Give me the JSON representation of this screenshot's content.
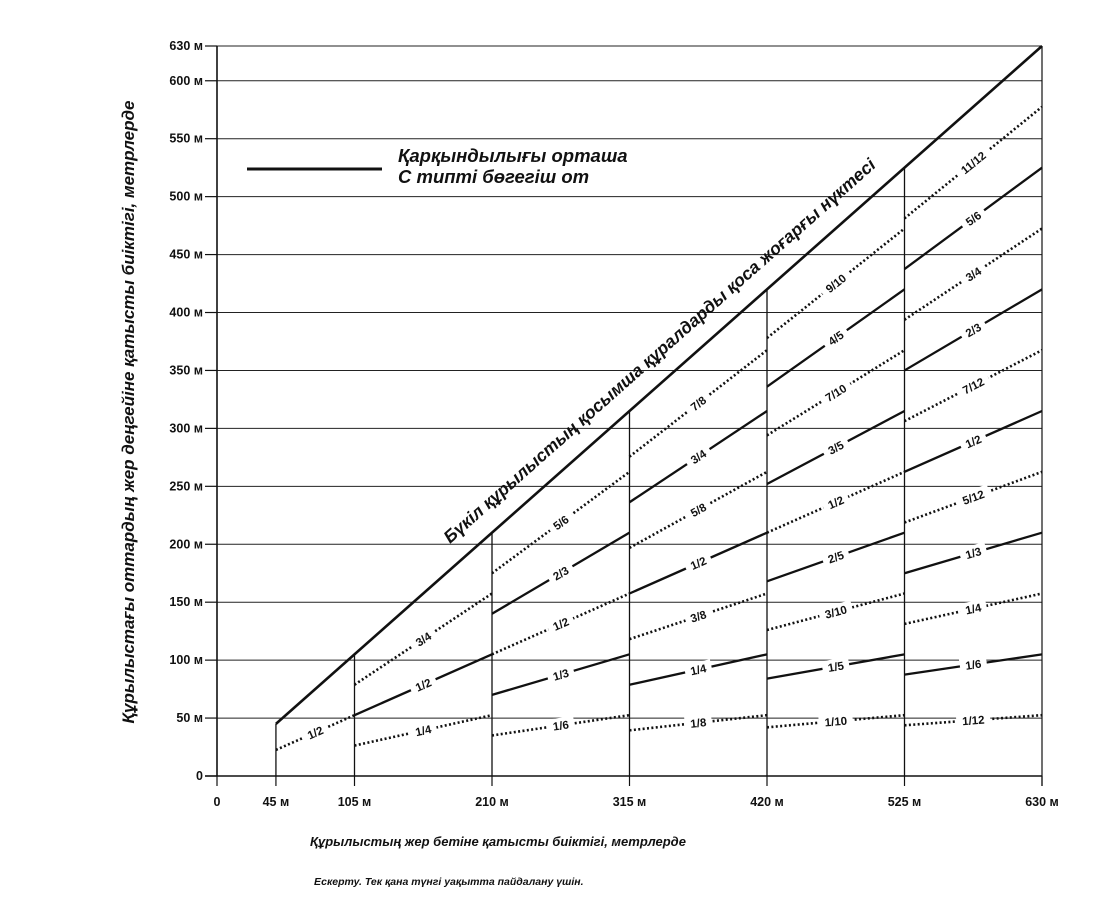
{
  "chart_data": {
    "type": "line",
    "xlabel": "Құрылыстың жер бетіне қатысты биіктігі, метрлерде",
    "ylabel": "Құрылыстағы оттардың жер деңгейіне қатысты биіктігі, метрлерде",
    "note": "Ескерту. Тек қана түнгі уақытта пайдалану үшін.",
    "legend": {
      "line1": "Қарқындылығы орташа",
      "line2": "С типті бөгегіш от",
      "style": "solid"
    },
    "diagonal_label": "Бүкіл құрылыстың қосымша құралдарды қоса жоғарғы нүктесі",
    "xlim": [
      0,
      630
    ],
    "ylim": [
      0,
      630
    ],
    "x_ticks": [
      {
        "value": 0,
        "label": "0"
      },
      {
        "value": 45,
        "label": "45 м"
      },
      {
        "value": 105,
        "label": "105 м"
      },
      {
        "value": 210,
        "label": "210 м"
      },
      {
        "value": 315,
        "label": "315 м"
      },
      {
        "value": 420,
        "label": "420 м"
      },
      {
        "value": 525,
        "label": "525 м"
      },
      {
        "value": 630,
        "label": "630 м"
      }
    ],
    "y_ticks": [
      {
        "value": 0,
        "label": "0"
      },
      {
        "value": 50,
        "label": "50 м"
      },
      {
        "value": 100,
        "label": "100 м"
      },
      {
        "value": 150,
        "label": "150 м"
      },
      {
        "value": 200,
        "label": "200 м"
      },
      {
        "value": 250,
        "label": "250 м"
      },
      {
        "value": 300,
        "label": "300 м"
      },
      {
        "value": 350,
        "label": "350 м"
      },
      {
        "value": 400,
        "label": "400 м"
      },
      {
        "value": 450,
        "label": "450 м"
      },
      {
        "value": 500,
        "label": "500 м"
      },
      {
        "value": 550,
        "label": "550 м"
      },
      {
        "value": 600,
        "label": "600 м"
      },
      {
        "value": 630,
        "label": "630 м"
      }
    ],
    "section_boundaries": [
      45,
      105,
      210,
      315,
      420,
      525
    ],
    "diagonal": {
      "x": [
        45,
        630
      ],
      "y": [
        45,
        630
      ],
      "style": "solid"
    },
    "series": [
      {
        "label": "1/2",
        "style": "dotted",
        "x": [
          45,
          105
        ],
        "y": [
          22.5,
          52.5
        ]
      },
      {
        "label": "1/4",
        "style": "dotted",
        "x": [
          105,
          210
        ],
        "y": [
          26.25,
          52.5
        ]
      },
      {
        "label": "1/2",
        "style": "solid",
        "x": [
          105,
          210
        ],
        "y": [
          52.5,
          105
        ]
      },
      {
        "label": "3/4",
        "style": "dotted",
        "x": [
          105,
          210
        ],
        "y": [
          78.75,
          157.5
        ]
      },
      {
        "label": "1/6",
        "style": "dotted",
        "x": [
          210,
          315
        ],
        "y": [
          35,
          52.5
        ]
      },
      {
        "label": "1/3",
        "style": "solid",
        "x": [
          210,
          315
        ],
        "y": [
          70,
          105
        ]
      },
      {
        "label": "1/2",
        "style": "dotted",
        "x": [
          210,
          315
        ],
        "y": [
          105,
          157.5
        ]
      },
      {
        "label": "2/3",
        "style": "solid",
        "x": [
          210,
          315
        ],
        "y": [
          140,
          210
        ]
      },
      {
        "label": "5/6",
        "style": "dotted",
        "x": [
          210,
          315
        ],
        "y": [
          175,
          262.5
        ]
      },
      {
        "label": "1/8",
        "style": "dotted",
        "x": [
          315,
          420
        ],
        "y": [
          39.4,
          52.5
        ]
      },
      {
        "label": "1/4",
        "style": "solid",
        "x": [
          315,
          420
        ],
        "y": [
          78.75,
          105
        ]
      },
      {
        "label": "3/8",
        "style": "dotted",
        "x": [
          315,
          420
        ],
        "y": [
          118.1,
          157.5
        ]
      },
      {
        "label": "1/2",
        "style": "solid",
        "x": [
          315,
          420
        ],
        "y": [
          157.5,
          210
        ]
      },
      {
        "label": "5/8",
        "style": "dotted",
        "x": [
          315,
          420
        ],
        "y": [
          196.9,
          262.5
        ]
      },
      {
        "label": "3/4",
        "style": "solid",
        "x": [
          315,
          420
        ],
        "y": [
          236.25,
          315
        ]
      },
      {
        "label": "7/8",
        "style": "dotted",
        "x": [
          315,
          420
        ],
        "y": [
          275.6,
          367.5
        ]
      },
      {
        "label": "1/10",
        "style": "dotted",
        "x": [
          420,
          525
        ],
        "y": [
          42,
          52.5
        ]
      },
      {
        "label": "1/5",
        "style": "solid",
        "x": [
          420,
          525
        ],
        "y": [
          84,
          105
        ]
      },
      {
        "label": "3/10",
        "style": "dotted",
        "x": [
          420,
          525
        ],
        "y": [
          126,
          157.5
        ]
      },
      {
        "label": "2/5",
        "style": "solid",
        "x": [
          420,
          525
        ],
        "y": [
          168,
          210
        ]
      },
      {
        "label": "1/2",
        "style": "dotted",
        "x": [
          420,
          525
        ],
        "y": [
          210,
          262.5
        ]
      },
      {
        "label": "3/5",
        "style": "solid",
        "x": [
          420,
          525
        ],
        "y": [
          252,
          315
        ]
      },
      {
        "label": "7/10",
        "style": "dotted",
        "x": [
          420,
          525
        ],
        "y": [
          294,
          367.5
        ]
      },
      {
        "label": "4/5",
        "style": "solid",
        "x": [
          420,
          525
        ],
        "y": [
          336,
          420
        ]
      },
      {
        "label": "9/10",
        "style": "dotted",
        "x": [
          420,
          525
        ],
        "y": [
          378,
          472.5
        ]
      },
      {
        "label": "1/12",
        "style": "dotted",
        "x": [
          525,
          630
        ],
        "y": [
          43.75,
          52.5
        ]
      },
      {
        "label": "1/6",
        "style": "solid",
        "x": [
          525,
          630
        ],
        "y": [
          87.5,
          105
        ]
      },
      {
        "label": "1/4",
        "style": "dotted",
        "x": [
          525,
          630
        ],
        "y": [
          131.25,
          157.5
        ]
      },
      {
        "label": "1/3",
        "style": "solid",
        "x": [
          525,
          630
        ],
        "y": [
          175,
          210
        ]
      },
      {
        "label": "5/12",
        "style": "dotted",
        "x": [
          525,
          630
        ],
        "y": [
          218.75,
          262.5
        ]
      },
      {
        "label": "1/2",
        "style": "solid",
        "x": [
          525,
          630
        ],
        "y": [
          262.5,
          315
        ]
      },
      {
        "label": "7/12",
        "style": "dotted",
        "x": [
          525,
          630
        ],
        "y": [
          306.25,
          367.5
        ]
      },
      {
        "label": "2/3",
        "style": "solid",
        "x": [
          525,
          630
        ],
        "y": [
          350,
          420
        ]
      },
      {
        "label": "3/4",
        "style": "dotted",
        "x": [
          525,
          630
        ],
        "y": [
          393.75,
          472.5
        ]
      },
      {
        "label": "5/6",
        "style": "solid",
        "x": [
          525,
          630
        ],
        "y": [
          437.5,
          525
        ]
      },
      {
        "label": "11/12",
        "style": "dotted",
        "x": [
          525,
          630
        ],
        "y": [
          481.25,
          577.5
        ]
      }
    ]
  }
}
